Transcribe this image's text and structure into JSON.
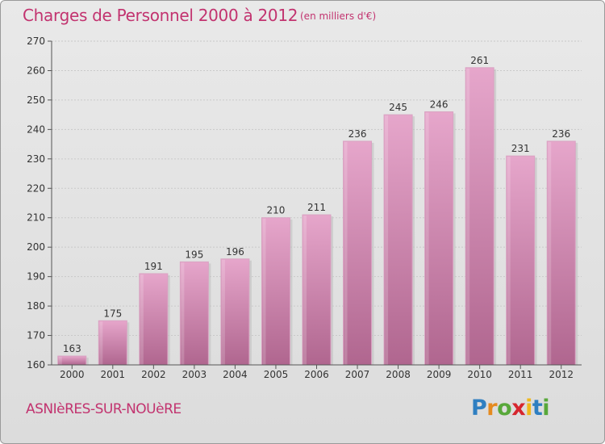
{
  "header": {
    "title": "Charges de Personnel 2000 à 2012",
    "unit": "(en milliers d'€)"
  },
  "footer": {
    "commune": "ASNIèRES-SUR-NOUèRE",
    "logo": {
      "p": "P",
      "r": "r",
      "o": "o",
      "x": "x",
      "i1": "i",
      "t": "t",
      "i2": "i"
    }
  },
  "colors": {
    "bar_light": "#e6a6cb",
    "bar_dark": "#b0668f",
    "accent": "#c2336f",
    "grid": "#c9c9c9"
  },
  "chart_data": {
    "type": "bar",
    "categories": [
      "2000",
      "2001",
      "2002",
      "2003",
      "2004",
      "2005",
      "2006",
      "2007",
      "2008",
      "2009",
      "2010",
      "2011",
      "2012"
    ],
    "values": [
      163,
      175,
      191,
      195,
      196,
      210,
      211,
      236,
      245,
      246,
      261,
      231,
      236
    ],
    "data_labels": [
      "163",
      "175",
      "191",
      "195",
      "196",
      "210",
      "211",
      "236",
      "245",
      "246",
      "261",
      "231",
      "236"
    ],
    "ylim": [
      160,
      270
    ],
    "yticks": [
      160,
      170,
      180,
      190,
      200,
      210,
      220,
      230,
      240,
      250,
      260,
      270
    ],
    "ytick_labels": [
      "160",
      "170",
      "180",
      "190",
      "200",
      "210",
      "220",
      "230",
      "240",
      "250",
      "260",
      "270"
    ],
    "grid": true,
    "xlabel": "",
    "ylabel": ""
  }
}
